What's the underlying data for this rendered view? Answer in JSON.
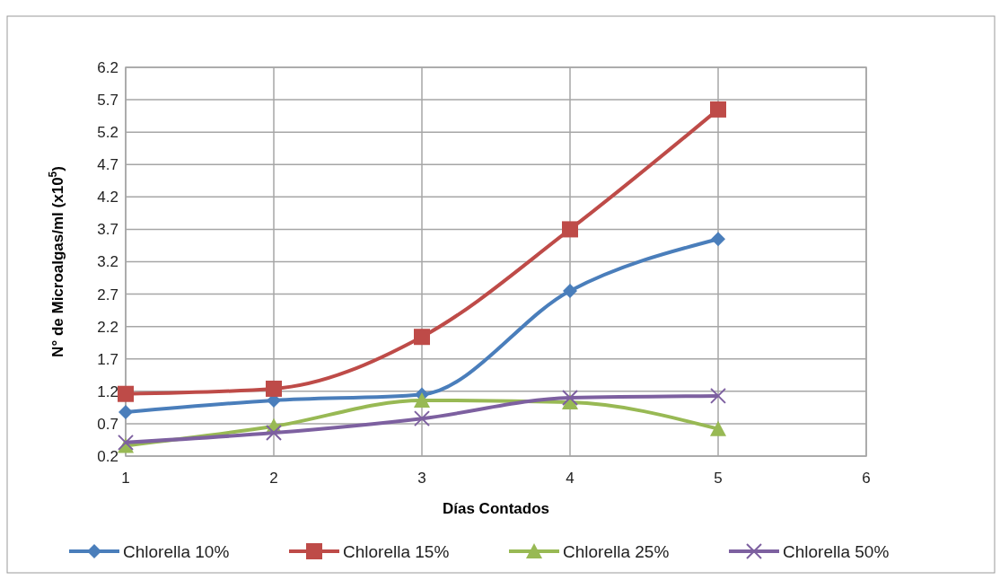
{
  "chart_data": {
    "type": "line",
    "xlabel": "Días Contados",
    "ylabel": "N° de Microalgas/ml (x10$^{5}$)",
    "x": [
      1,
      2,
      3,
      4,
      5
    ],
    "xlim": [
      1,
      6
    ],
    "xticks": [
      1,
      2,
      3,
      4,
      5,
      6
    ],
    "ylim": [
      0.2,
      6.2
    ],
    "yticks": [
      0.2,
      0.7,
      1.2,
      1.7,
      2.2,
      2.7,
      3.2,
      3.7,
      4.2,
      4.7,
      5.2,
      5.7,
      6.2
    ],
    "grid": true,
    "legend": "bottom",
    "series": [
      {
        "name": "Chlorella 10%",
        "color": "#4a7ebb",
        "marker": "diamond",
        "values": [
          0.88,
          1.06,
          1.15,
          2.75,
          3.55
        ]
      },
      {
        "name": "Chlorella 15%",
        "color": "#be4b48",
        "marker": "square",
        "values": [
          1.16,
          1.24,
          2.04,
          3.7,
          5.55
        ]
      },
      {
        "name": "Chlorella 25%",
        "color": "#98b954",
        "marker": "triangle",
        "values": [
          0.36,
          0.66,
          1.06,
          1.03,
          0.62
        ]
      },
      {
        "name": "Chlorella 50%",
        "color": "#7d60a0",
        "marker": "cross",
        "values": [
          0.41,
          0.56,
          0.78,
          1.1,
          1.13
        ]
      }
    ]
  }
}
